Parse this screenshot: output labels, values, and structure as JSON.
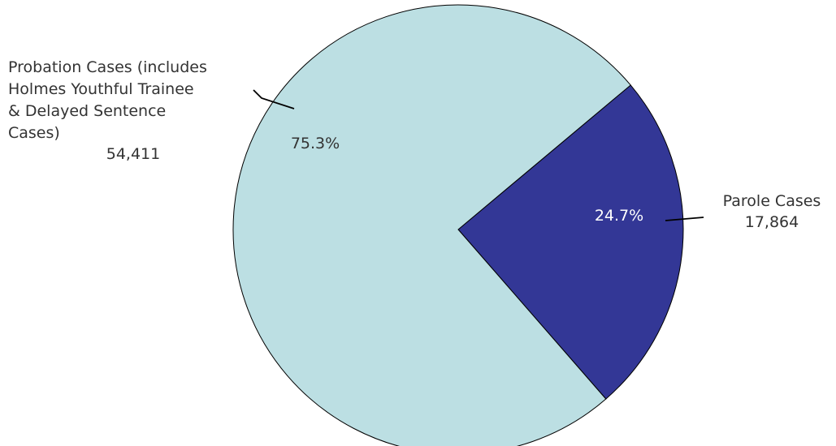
{
  "chart_data": {
    "type": "pie",
    "title": "",
    "slices": [
      {
        "label_lines": [
          "Parole Cases"
        ],
        "value": 17864,
        "value_label": "17,864",
        "percent_label": "24.7%",
        "color": "#333796"
      },
      {
        "label_lines": [
          "Probation Cases (includes",
          "Holmes Youthful Trainee",
          "& Delayed Sentence",
          "Cases)"
        ],
        "value": 54411,
        "value_label": "54,411",
        "percent_label": "75.3%",
        "color": "#bcdfe3"
      }
    ],
    "legend": "none",
    "start_angle_deg": 50,
    "direction": "clockwise",
    "slice_border_color": "#000000"
  }
}
